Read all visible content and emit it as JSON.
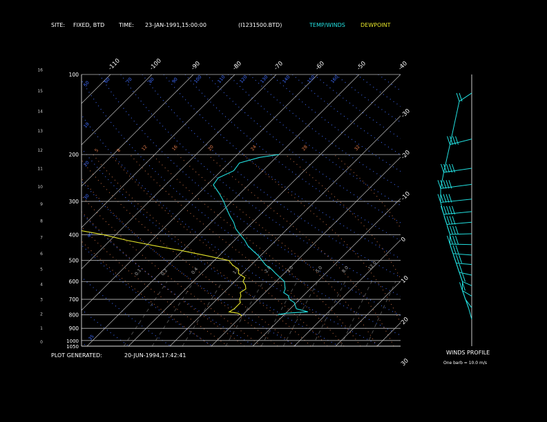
{
  "header": {
    "site_label": "SITE:",
    "site_value": "FIXED, BTD",
    "time_label": "TIME:",
    "time_value": "23-JAN-1991,15:00:00",
    "file_value": "(I1231500.BTD)",
    "legend_temp": "TEMP/WINDS",
    "legend_dew": "DEWPOINT"
  },
  "footer": {
    "plot_generated_label": "PLOT GENERATED:",
    "plot_generated_value": "20-JUN-1994,17:42:41",
    "winds_profile_label": "WINDS PROFILE",
    "winds_note": "One barb = 10.0 m/s"
  },
  "colors": {
    "temp": "#22e0e0",
    "dew": "#e6e62a",
    "isotherm": "#bbbbbb",
    "isobar": "#bbbbbb",
    "dry_adiabat": "#3f6cff",
    "moist_adiabat": "#e07a4a"
  },
  "chart_data": {
    "type": "line",
    "title": "",
    "xlabel": "",
    "ylabel": "",
    "pressure_ticks": [
      "100",
      "200",
      "300",
      "400",
      "500",
      "600",
      "700",
      "800",
      "900",
      "1000",
      "1050"
    ],
    "height_ticks": [
      "0",
      "1",
      "2",
      "3",
      "4",
      "5",
      "6",
      "7",
      "8",
      "9",
      "10",
      "11",
      "12",
      "13",
      "14",
      "15",
      "16"
    ],
    "top_temp_ticks": [
      "-110",
      "-100",
      "-90",
      "-80",
      "-70",
      "-60",
      "-50",
      "-40"
    ],
    "right_temp_ticks": [
      "-30",
      "-20",
      "-10",
      "0",
      "10",
      "20",
      "30"
    ],
    "dry_adiabat_labels": [
      "50",
      "60",
      "70",
      "80",
      "90",
      "100",
      "110",
      "120",
      "130",
      "140",
      "150",
      "160",
      "10",
      "20",
      "30",
      "40",
      "35"
    ],
    "moist_adiabat_labels": [
      "5",
      "8",
      "12",
      "16",
      "20",
      "24",
      "28",
      "32"
    ],
    "mixing_ratio_labels": [
      "0.1",
      "0.2",
      "0.4",
      "1.0",
      "2.0",
      "3.0",
      "5.0",
      "8.0",
      "12.0"
    ],
    "series": [
      {
        "name": "TEMP/WINDS",
        "points": [
          [
            800,
            -11.5
          ],
          [
            790,
            -10.0
          ],
          [
            780,
            -5.0
          ],
          [
            760,
            -8.5
          ],
          [
            740,
            -9.5
          ],
          [
            720,
            -10.5
          ],
          [
            700,
            -12.5
          ],
          [
            680,
            -13.5
          ],
          [
            660,
            -15.5
          ],
          [
            640,
            -16.0
          ],
          [
            620,
            -17.0
          ],
          [
            600,
            -18.0
          ],
          [
            580,
            -20.0
          ],
          [
            560,
            -22.0
          ],
          [
            540,
            -24.0
          ],
          [
            520,
            -26.5
          ],
          [
            500,
            -28.5
          ],
          [
            480,
            -30.5
          ],
          [
            460,
            -33.0
          ],
          [
            440,
            -35.5
          ],
          [
            420,
            -37.5
          ],
          [
            400,
            -40.0
          ],
          [
            380,
            -42.5
          ],
          [
            360,
            -44.5
          ],
          [
            340,
            -47.0
          ],
          [
            320,
            -49.5
          ],
          [
            300,
            -52.0
          ],
          [
            280,
            -55.0
          ],
          [
            260,
            -58.5
          ],
          [
            245,
            -59.0
          ],
          [
            230,
            -57.0
          ],
          [
            215,
            -57.5
          ],
          [
            205,
            -54.0
          ],
          [
            200,
            -50.0
          ]
        ]
      },
      {
        "name": "DEWPOINT",
        "points": [
          [
            810,
            -20.0
          ],
          [
            800,
            -20.5
          ],
          [
            790,
            -21.5
          ],
          [
            780,
            -24.0
          ],
          [
            760,
            -23.5
          ],
          [
            740,
            -23.5
          ],
          [
            720,
            -23.5
          ],
          [
            700,
            -24.5
          ],
          [
            680,
            -25.0
          ],
          [
            660,
            -26.0
          ],
          [
            640,
            -25.5
          ],
          [
            620,
            -26.5
          ],
          [
            600,
            -28.0
          ],
          [
            580,
            -28.5
          ],
          [
            560,
            -31.0
          ],
          [
            540,
            -32.0
          ],
          [
            520,
            -34.5
          ],
          [
            500,
            -36.5
          ],
          [
            480,
            -43.0
          ],
          [
            460,
            -50.0
          ],
          [
            440,
            -58.0
          ],
          [
            420,
            -66.0
          ],
          [
            400,
            -73.0
          ],
          [
            385,
            -80.0
          ],
          [
            370,
            -88.0
          ],
          [
            360,
            -95.0
          ],
          [
            300,
            -98.0
          ],
          [
            270,
            -99.0
          ],
          [
            260,
            -95.0
          ],
          [
            250,
            -97.0
          ],
          [
            240,
            -99.0
          ],
          [
            230,
            -100.0
          ],
          [
            220,
            -101.0
          ]
        ]
      }
    ],
    "wind_profile": {
      "note": "One barb = 10.0 m/s",
      "levels": [
        {
          "height_km": 14.5,
          "speed": 20,
          "dir": 290
        },
        {
          "height_km": 12.3,
          "speed": 35,
          "dir": 280
        },
        {
          "height_km": 10.8,
          "speed": 45,
          "dir": 275
        },
        {
          "height_km": 9.9,
          "speed": 50,
          "dir": 275
        },
        {
          "height_km": 9.1,
          "speed": 50,
          "dir": 272
        },
        {
          "height_km": 8.4,
          "speed": 45,
          "dir": 270
        },
        {
          "height_km": 7.8,
          "speed": 40,
          "dir": 268
        },
        {
          "height_km": 7.2,
          "speed": 35,
          "dir": 262
        },
        {
          "height_km": 6.6,
          "speed": 35,
          "dir": 258
        },
        {
          "height_km": 6.0,
          "speed": 30,
          "dir": 255
        },
        {
          "height_km": 5.4,
          "speed": 25,
          "dir": 255
        },
        {
          "height_km": 4.8,
          "speed": 20,
          "dir": 250
        },
        {
          "height_km": 4.2,
          "speed": 15,
          "dir": 245
        },
        {
          "height_km": 3.6,
          "speed": 15,
          "dir": 240
        },
        {
          "height_km": 3.0,
          "speed": 10,
          "dir": 230
        },
        {
          "height_km": 2.4,
          "speed": 5,
          "dir": 220
        }
      ]
    }
  }
}
